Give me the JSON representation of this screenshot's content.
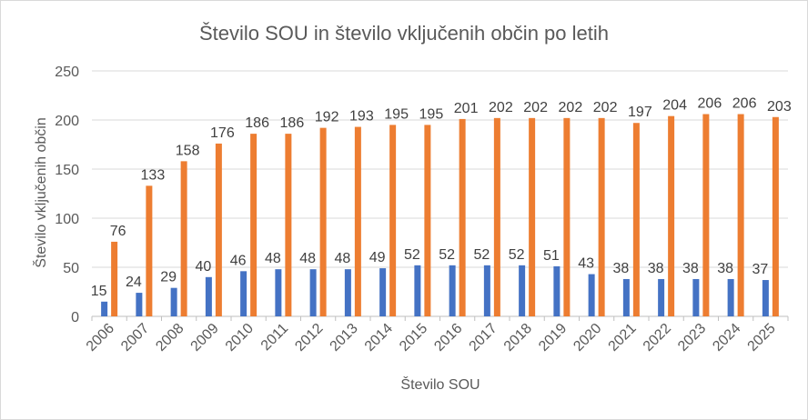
{
  "chart_data": {
    "type": "bar",
    "title": "Število SOU in število vključenih občin po letih",
    "xlabel": "Število SOU",
    "ylabel": "Število vključenih občin",
    "ylim": [
      0,
      250
    ],
    "yticks": [
      0,
      50,
      100,
      150,
      200,
      250
    ],
    "grid": true,
    "legend": "none",
    "categories": [
      "2006",
      "2007",
      "2008",
      "2009",
      "2010",
      "2011",
      "2012",
      "2013",
      "2014",
      "2015",
      "2016",
      "2017",
      "2018",
      "2019",
      "2020",
      "2021",
      "2022",
      "2023",
      "2024",
      "2025"
    ],
    "series": [
      {
        "color": "#4472c4",
        "values": [
          15,
          24,
          29,
          40,
          46,
          48,
          48,
          48,
          49,
          52,
          52,
          52,
          52,
          51,
          43,
          38,
          38,
          38,
          38,
          37
        ]
      },
      {
        "color": "#ed7d31",
        "values": [
          76,
          133,
          158,
          176,
          186,
          186,
          192,
          193,
          195,
          195,
          201,
          202,
          202,
          202,
          202,
          197,
          204,
          206,
          206,
          203
        ]
      }
    ]
  }
}
